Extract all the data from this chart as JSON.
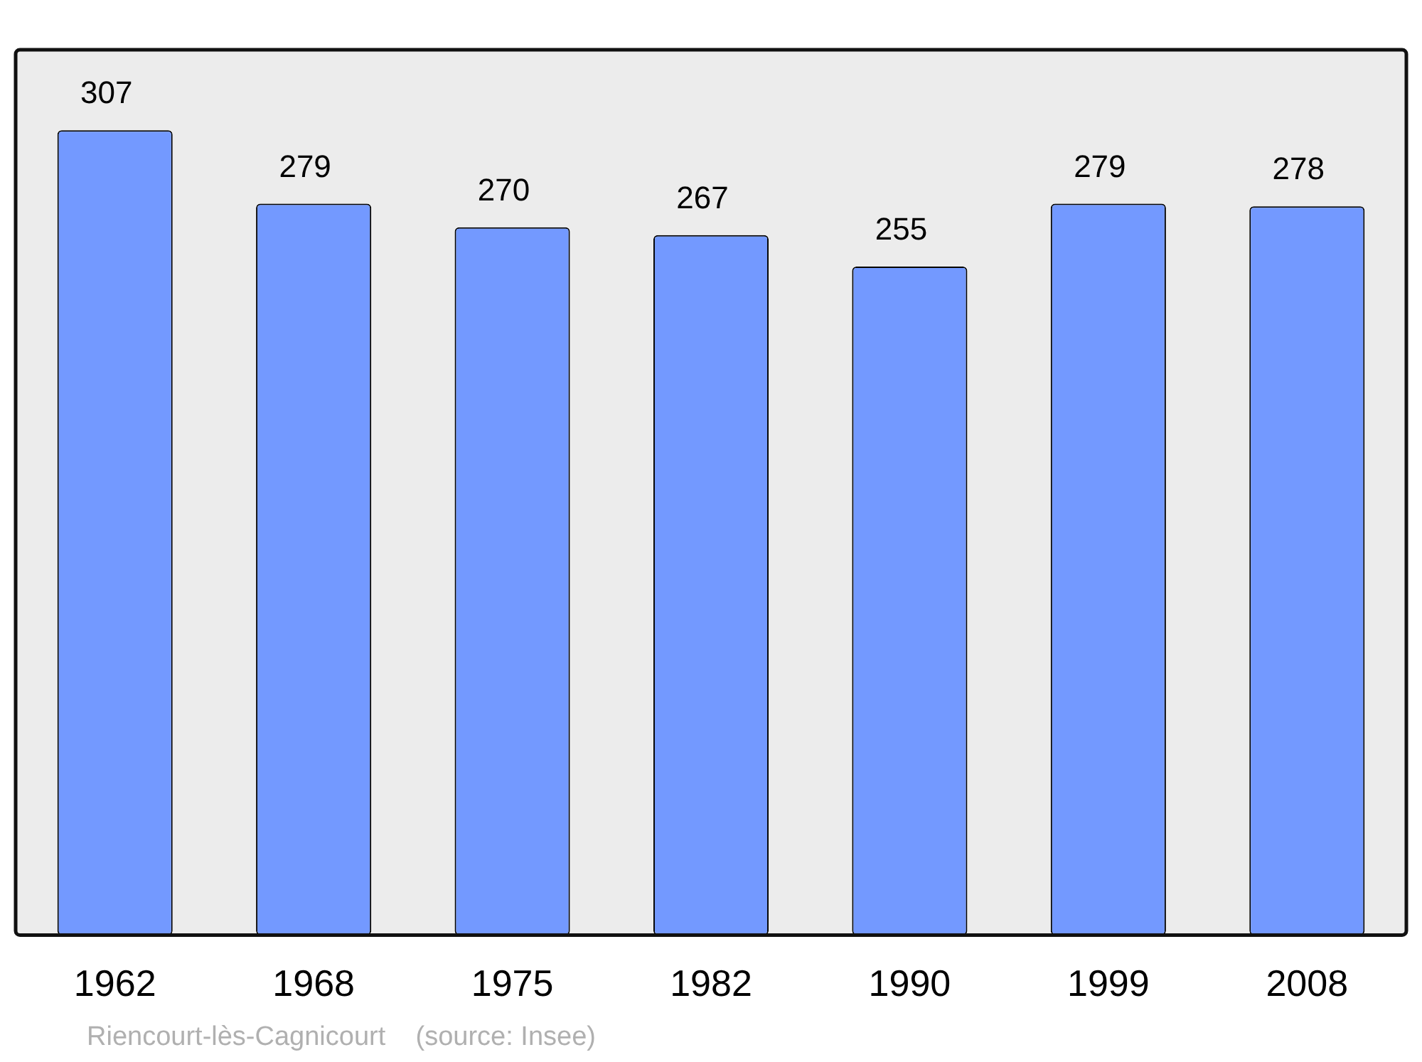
{
  "chart_data": {
    "type": "bar",
    "categories": [
      "1962",
      "1968",
      "1975",
      "1982",
      "1990",
      "1999",
      "2008"
    ],
    "values": [
      307,
      279,
      270,
      267,
      255,
      279,
      278
    ],
    "color": "#7399ff",
    "data_labels": true,
    "tick_labels": "x",
    "grid": false,
    "legend": false,
    "annotations": [
      "Riencourt-lès-Cagnicourt    (source: Insee)"
    ]
  }
}
